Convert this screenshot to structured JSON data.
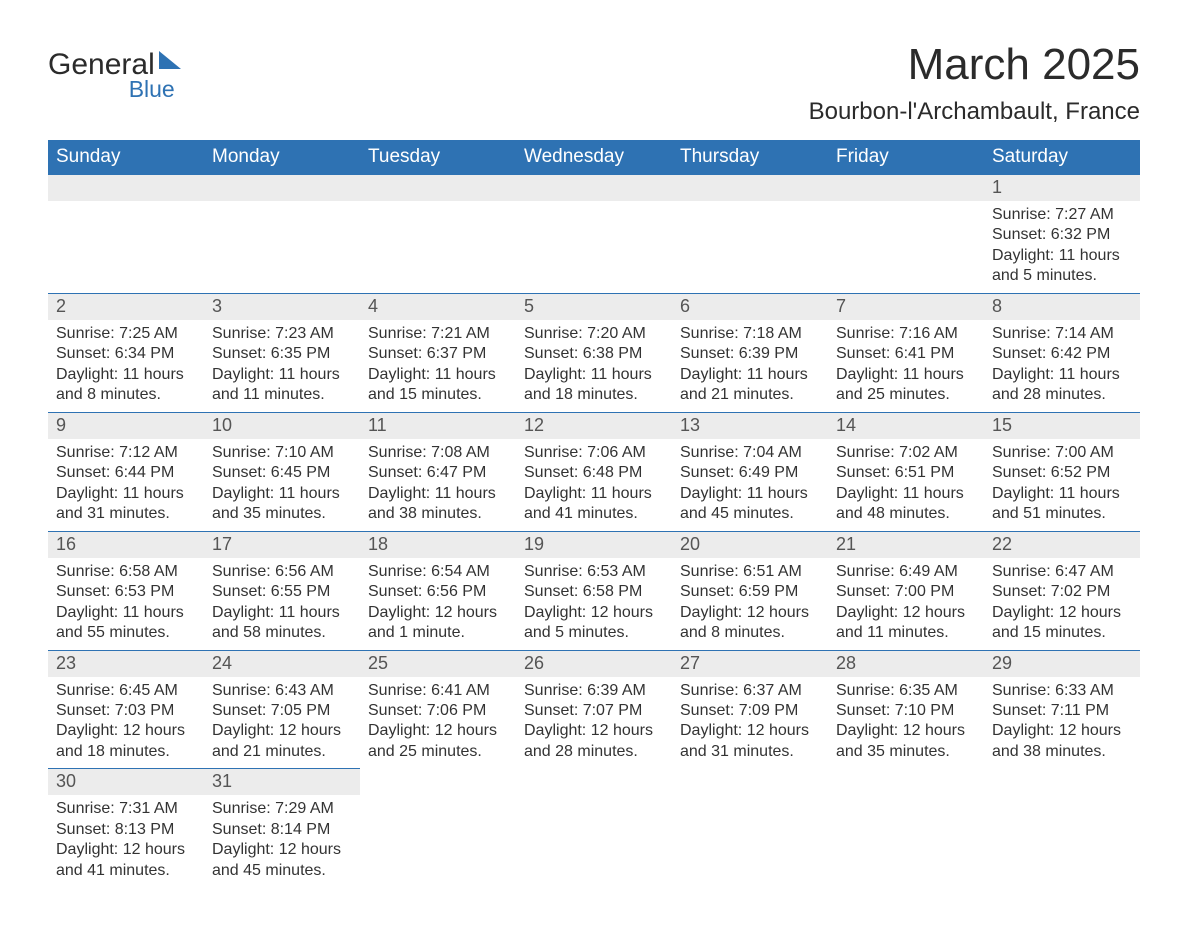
{
  "brand": {
    "line1": "General",
    "line2": "Blue"
  },
  "title": "March 2025",
  "location": "Bourbon-l'Archambault, France",
  "colors": {
    "header_bg": "#2e72b3",
    "header_text": "#ffffff",
    "row_divider": "#2e72b3",
    "daynum_bg": "#ececec",
    "daynum_text": "#555555",
    "body_text": "#333333",
    "page_bg": "#ffffff"
  },
  "font": {
    "family": "Arial",
    "title_size_pt": 33,
    "location_size_pt": 18,
    "weekday_size_pt": 14,
    "daynum_size_pt": 14,
    "cell_size_pt": 12
  },
  "weekdays": [
    "Sunday",
    "Monday",
    "Tuesday",
    "Wednesday",
    "Thursday",
    "Friday",
    "Saturday"
  ],
  "weeks": [
    [
      null,
      null,
      null,
      null,
      null,
      null,
      {
        "n": "1",
        "sunrise": "7:27 AM",
        "sunset": "6:32 PM",
        "daylight": "11 hours and 5 minutes."
      }
    ],
    [
      {
        "n": "2",
        "sunrise": "7:25 AM",
        "sunset": "6:34 PM",
        "daylight": "11 hours and 8 minutes."
      },
      {
        "n": "3",
        "sunrise": "7:23 AM",
        "sunset": "6:35 PM",
        "daylight": "11 hours and 11 minutes."
      },
      {
        "n": "4",
        "sunrise": "7:21 AM",
        "sunset": "6:37 PM",
        "daylight": "11 hours and 15 minutes."
      },
      {
        "n": "5",
        "sunrise": "7:20 AM",
        "sunset": "6:38 PM",
        "daylight": "11 hours and 18 minutes."
      },
      {
        "n": "6",
        "sunrise": "7:18 AM",
        "sunset": "6:39 PM",
        "daylight": "11 hours and 21 minutes."
      },
      {
        "n": "7",
        "sunrise": "7:16 AM",
        "sunset": "6:41 PM",
        "daylight": "11 hours and 25 minutes."
      },
      {
        "n": "8",
        "sunrise": "7:14 AM",
        "sunset": "6:42 PM",
        "daylight": "11 hours and 28 minutes."
      }
    ],
    [
      {
        "n": "9",
        "sunrise": "7:12 AM",
        "sunset": "6:44 PM",
        "daylight": "11 hours and 31 minutes."
      },
      {
        "n": "10",
        "sunrise": "7:10 AM",
        "sunset": "6:45 PM",
        "daylight": "11 hours and 35 minutes."
      },
      {
        "n": "11",
        "sunrise": "7:08 AM",
        "sunset": "6:47 PM",
        "daylight": "11 hours and 38 minutes."
      },
      {
        "n": "12",
        "sunrise": "7:06 AM",
        "sunset": "6:48 PM",
        "daylight": "11 hours and 41 minutes."
      },
      {
        "n": "13",
        "sunrise": "7:04 AM",
        "sunset": "6:49 PM",
        "daylight": "11 hours and 45 minutes."
      },
      {
        "n": "14",
        "sunrise": "7:02 AM",
        "sunset": "6:51 PM",
        "daylight": "11 hours and 48 minutes."
      },
      {
        "n": "15",
        "sunrise": "7:00 AM",
        "sunset": "6:52 PM",
        "daylight": "11 hours and 51 minutes."
      }
    ],
    [
      {
        "n": "16",
        "sunrise": "6:58 AM",
        "sunset": "6:53 PM",
        "daylight": "11 hours and 55 minutes."
      },
      {
        "n": "17",
        "sunrise": "6:56 AM",
        "sunset": "6:55 PM",
        "daylight": "11 hours and 58 minutes."
      },
      {
        "n": "18",
        "sunrise": "6:54 AM",
        "sunset": "6:56 PM",
        "daylight": "12 hours and 1 minute."
      },
      {
        "n": "19",
        "sunrise": "6:53 AM",
        "sunset": "6:58 PM",
        "daylight": "12 hours and 5 minutes."
      },
      {
        "n": "20",
        "sunrise": "6:51 AM",
        "sunset": "6:59 PM",
        "daylight": "12 hours and 8 minutes."
      },
      {
        "n": "21",
        "sunrise": "6:49 AM",
        "sunset": "7:00 PM",
        "daylight": "12 hours and 11 minutes."
      },
      {
        "n": "22",
        "sunrise": "6:47 AM",
        "sunset": "7:02 PM",
        "daylight": "12 hours and 15 minutes."
      }
    ],
    [
      {
        "n": "23",
        "sunrise": "6:45 AM",
        "sunset": "7:03 PM",
        "daylight": "12 hours and 18 minutes."
      },
      {
        "n": "24",
        "sunrise": "6:43 AM",
        "sunset": "7:05 PM",
        "daylight": "12 hours and 21 minutes."
      },
      {
        "n": "25",
        "sunrise": "6:41 AM",
        "sunset": "7:06 PM",
        "daylight": "12 hours and 25 minutes."
      },
      {
        "n": "26",
        "sunrise": "6:39 AM",
        "sunset": "7:07 PM",
        "daylight": "12 hours and 28 minutes."
      },
      {
        "n": "27",
        "sunrise": "6:37 AM",
        "sunset": "7:09 PM",
        "daylight": "12 hours and 31 minutes."
      },
      {
        "n": "28",
        "sunrise": "6:35 AM",
        "sunset": "7:10 PM",
        "daylight": "12 hours and 35 minutes."
      },
      {
        "n": "29",
        "sunrise": "6:33 AM",
        "sunset": "7:11 PM",
        "daylight": "12 hours and 38 minutes."
      }
    ],
    [
      {
        "n": "30",
        "sunrise": "7:31 AM",
        "sunset": "8:13 PM",
        "daylight": "12 hours and 41 minutes."
      },
      {
        "n": "31",
        "sunrise": "7:29 AM",
        "sunset": "8:14 PM",
        "daylight": "12 hours and 45 minutes."
      },
      null,
      null,
      null,
      null,
      null
    ]
  ],
  "labels": {
    "sunrise": "Sunrise:",
    "sunset": "Sunset:",
    "daylight": "Daylight:"
  }
}
